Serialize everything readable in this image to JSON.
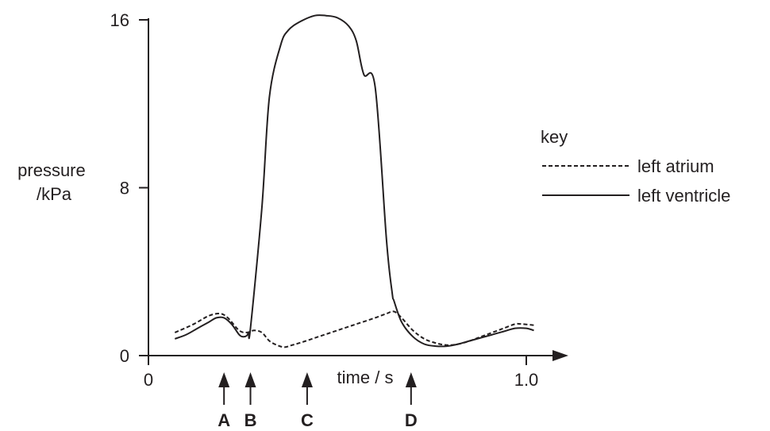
{
  "chart_data": {
    "type": "line",
    "ylabel": "pressure\n/kPa",
    "xlabel": "time / s",
    "xlim": [
      0,
      1.05
    ],
    "ylim": [
      0,
      16
    ],
    "yticks": [
      0,
      8,
      16
    ],
    "xtick_labels": [
      "0",
      "1.0"
    ],
    "xtick_values": [
      0,
      1.0
    ],
    "grid": false,
    "legend": {
      "title": "key",
      "placement": "right",
      "entries": [
        "left atrium",
        "left ventricle"
      ]
    },
    "series": [
      {
        "name": "left atrium",
        "style": "dashed",
        "x": [
          0.07,
          0.12,
          0.16,
          0.19,
          0.21,
          0.24,
          0.26,
          0.28,
          0.3,
          0.32,
          0.34,
          0.36,
          0.38,
          0.4,
          0.45,
          0.5,
          0.55,
          0.6,
          0.63,
          0.65,
          0.67,
          0.7,
          0.73,
          0.76,
          0.79,
          0.82,
          0.85,
          0.88,
          0.91,
          0.94,
          0.97,
          0.99,
          1.02
        ],
        "y": [
          1.1,
          1.5,
          1.9,
          2.0,
          1.8,
          1.2,
          1.1,
          1.2,
          1.1,
          0.7,
          0.5,
          0.4,
          0.5,
          0.6,
          0.9,
          1.2,
          1.5,
          1.8,
          2.0,
          2.1,
          1.8,
          1.2,
          0.8,
          0.6,
          0.5,
          0.55,
          0.7,
          0.9,
          1.1,
          1.3,
          1.5,
          1.5,
          1.45
        ]
      },
      {
        "name": "left ventricle",
        "style": "solid",
        "x": [
          0.07,
          0.1,
          0.13,
          0.16,
          0.18,
          0.2,
          0.22,
          0.24,
          0.25,
          0.26,
          0.265,
          0.27,
          0.3,
          0.32,
          0.35,
          0.37,
          0.4,
          0.44,
          0.47,
          0.5,
          0.53,
          0.55,
          0.57,
          0.6,
          0.63,
          0.645,
          0.65,
          0.67,
          0.7,
          0.73,
          0.76,
          0.79,
          0.82,
          0.85,
          0.88,
          0.91,
          0.94,
          0.97,
          1.0,
          1.02
        ],
        "y": [
          0.8,
          1.0,
          1.3,
          1.6,
          1.8,
          1.8,
          1.5,
          1.0,
          0.9,
          0.95,
          1.1,
          1.3,
          7.0,
          12.3,
          14.8,
          15.5,
          15.9,
          16.2,
          16.2,
          16.1,
          15.7,
          15.0,
          13.4,
          12.8,
          5.5,
          3.0,
          2.6,
          1.6,
          0.9,
          0.55,
          0.45,
          0.45,
          0.55,
          0.7,
          0.85,
          1.0,
          1.15,
          1.3,
          1.3,
          1.2
        ]
      }
    ],
    "markers": [
      {
        "label": "A",
        "x": 0.2
      },
      {
        "label": "B",
        "x": 0.27
      },
      {
        "label": "C",
        "x": 0.42
      },
      {
        "label": "D",
        "x": 0.695
      }
    ]
  }
}
